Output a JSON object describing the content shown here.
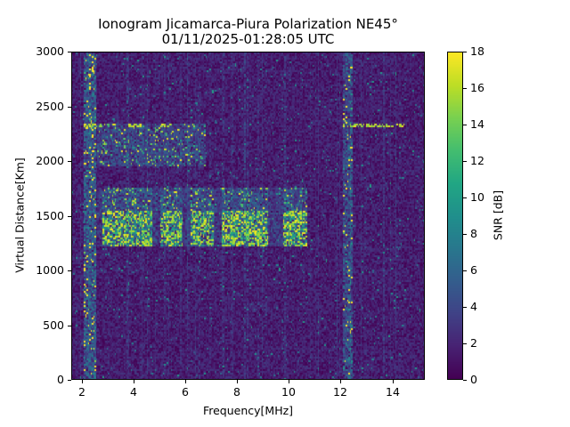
{
  "chart_data": {
    "type": "heatmap",
    "title": "Ionogram Jicamarca-Piura Polarization NE45°",
    "subtitle": "01/11/2025-01:28:05 UTC",
    "xlabel": "Frequency[MHz]",
    "ylabel": "Virtual Distance[Km]",
    "xlim": [
      1.6,
      15.25
    ],
    "ylim": [
      0,
      3000
    ],
    "xticks": [
      2,
      4,
      6,
      8,
      10,
      12,
      14
    ],
    "yticks": [
      0,
      500,
      1000,
      1500,
      2000,
      2500,
      3000
    ],
    "colorbar": {
      "label": "SNR [dB]",
      "range": [
        0,
        18
      ],
      "ticks": [
        0,
        2,
        4,
        6,
        8,
        10,
        12,
        14,
        16,
        18
      ],
      "colormap": "viridis"
    },
    "grid": false,
    "features": [
      {
        "name": "F-layer echo band (multi-hop)",
        "freq_range_mhz": [
          2.6,
          10.7
        ],
        "distance_range_km": [
          1220,
          1750
        ],
        "peak_snr_db": 18,
        "clusters_mhz": [
          [
            2.8,
            4.7
          ],
          [
            5.0,
            5.9
          ],
          [
            6.2,
            7.1
          ],
          [
            7.4,
            9.2
          ],
          [
            9.8,
            10.7
          ]
        ]
      },
      {
        "name": "upper echo band",
        "freq_range_mhz": [
          2.6,
          6.8
        ],
        "distance_range_km": [
          1950,
          2350
        ],
        "peak_snr_db": 16
      },
      {
        "name": "horizontal line ~2330 km",
        "freq_range_mhz": [
          2.0,
          14.5
        ],
        "distance_km": 2330,
        "peak_snr_db": 18
      },
      {
        "name": "interference column ~2.3 MHz",
        "freq_mhz": 2.3,
        "distance_range_km": [
          0,
          3000
        ],
        "peak_snr_db": 18
      },
      {
        "name": "interference column ~12.3 MHz",
        "freq_mhz": 12.3,
        "distance_range_km": [
          0,
          3000
        ],
        "peak_snr_db": 18
      },
      {
        "name": "background noise",
        "snr_db_typical": [
          0,
          4
        ]
      }
    ]
  }
}
